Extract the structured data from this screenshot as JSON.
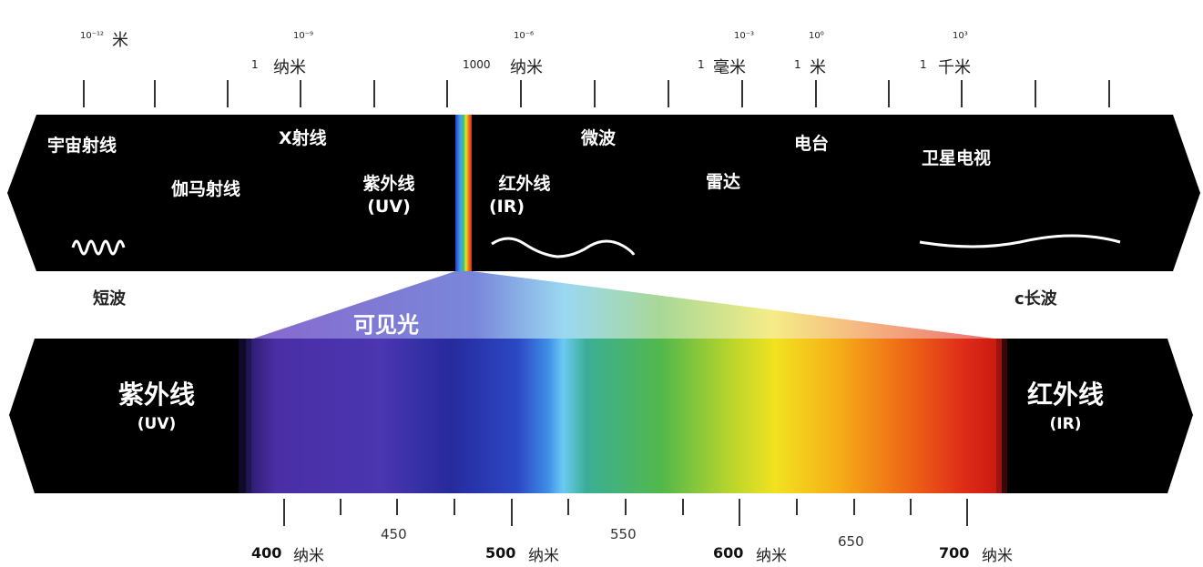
{
  "scale": {
    "top_items": [
      {
        "exp": "10⁻¹²",
        "label": "米"
      },
      {
        "exp": "10⁻⁹",
        "prefix": "1",
        "label": "纳米"
      },
      {
        "exp": "10⁻⁶",
        "prefix": "1000",
        "label": "纳米"
      },
      {
        "exp": "10⁻³",
        "prefix": "1",
        "label": "毫米"
      },
      {
        "exp": "10⁰",
        "prefix": "1",
        "label": "米"
      },
      {
        "exp": "10³",
        "prefix": "1",
        "label": "千米"
      }
    ]
  },
  "spectrum_band": {
    "cosmic": "宇宙射线",
    "gamma": "伽马射线",
    "xray": "X射线",
    "uv_name": "紫外线",
    "uv_abbr": "(UV)",
    "ir_name": "红外线",
    "ir_abbr": "(IR)",
    "microwave": "微波",
    "radar": "雷达",
    "radio": "电台",
    "satellite_tv": "卫星电视"
  },
  "side_labels": {
    "short_wave": "短波",
    "long_wave": "c长波"
  },
  "visible": {
    "title": "可见光",
    "left_name": "紫外线",
    "left_abbr": "(UV)",
    "right_name": "红外线",
    "right_abbr": "(IR)",
    "gradient_colors": [
      "#3a1e88",
      "#4b2fa8",
      "#3a3ab4",
      "#2c3fb8",
      "#2a55c8",
      "#3a8fe0",
      "#5fc3ee",
      "#3ab58a",
      "#5fbd3e",
      "#b6d22a",
      "#f0e020",
      "#f6b81a",
      "#f27a14",
      "#e8421a",
      "#d21e18"
    ]
  },
  "wavelength_axis": {
    "major": [
      {
        "num": "400",
        "unit": "纳米"
      },
      {
        "num": "500",
        "unit": "纳米"
      },
      {
        "num": "600",
        "unit": "纳米"
      },
      {
        "num": "700",
        "unit": "纳米"
      }
    ],
    "minor": [
      "450",
      "550",
      "650"
    ]
  },
  "colors": {
    "band_bg": "#000000",
    "text_light": "#ffffff",
    "text_dark": "#222222"
  }
}
